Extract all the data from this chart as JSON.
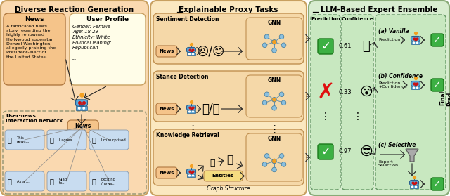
{
  "title_left": "Diverse Reaction Generation",
  "title_mid": "Explainable Proxy Tasks",
  "title_right": "LLM-Based Expert Ensemble",
  "bg_left": "#FAD9B0",
  "bg_mid": "#FBE8C0",
  "bg_right": "#D8EDD0",
  "news_box_color": "#F5C48A",
  "user_profile_color": "#FFFDE8",
  "entities_color": "#F5DC80",
  "task_box_color": "#F5C48A",
  "gnn_box_color": "#F5C48A",
  "check_green": "#3CB043",
  "cross_red": "#E01010",
  "network_box_color": "#FAD9B0",
  "user_card_color": "#C8DCF0",
  "news_text": "A fabricated news\nstory regarding the\nhighly renowned\nHollywood superstar\nDenzel Washington,\nallegedly praising the\nPresident-elect of\nthe United States, ...",
  "user_profile_text": "Gender: Female\nAge: 18-29\nEthnicity: White\nPolitical leaning:\nRepublican\n\n...",
  "confidence_values": [
    "0.61",
    "0.33",
    "0.97"
  ],
  "section_a": "(a) Vanilla",
  "section_b": "(b) Confidence",
  "section_c": "(c) Selective",
  "label_a": "Prediction",
  "label_b": "Prediction\n+Confidence",
  "label_c": "Expert\nSelection",
  "final_label": "Final\nPred.",
  "graph_structure_label": "Graph Structure",
  "sentiment_label": "Sentiment Detection",
  "stance_label": "Stance Detection",
  "knowledge_label": "Knowledge Retrieval",
  "gnn_label": "GNN",
  "news_label": "News",
  "entities_label": "Entities",
  "prediction_header": "Prediction",
  "confidence_header": "Confidence",
  "user_news_label": "User-news\ninteraction network",
  "user_boxes": [
    ": This\n  news...",
    ": I agree...",
    ": I'm surprised",
    ": As a ...",
    ": Glad\n  to...",
    ": Exciting\n  /news..."
  ]
}
